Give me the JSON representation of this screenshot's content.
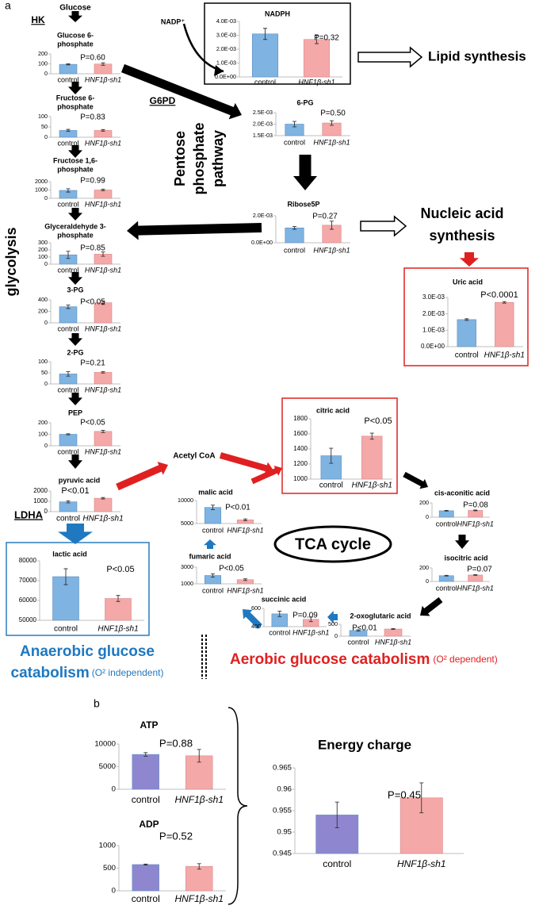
{
  "labels": {
    "panel_a": "a",
    "panel_b": "b",
    "glucose": "Glucose",
    "hk": "HK",
    "nadp": "NADP⁺",
    "g6pd": "G6PD",
    "pentose": [
      "Pentose",
      "phosphate",
      "pathway"
    ],
    "glycolysis": "glycolysis",
    "lipid": "Lipid synthesis",
    "nucleic": [
      "Nucleic acid",
      "synthesis"
    ],
    "acetyl": "Acetyl CoA",
    "ldha": "LDHA",
    "tca": "TCA cycle",
    "anaerobic": {
      "main": [
        "Anaerobic glucose",
        "catabolism"
      ],
      "note": "(O² independent)"
    },
    "aerobic": {
      "main": "Aerobic glucose catabolism",
      "note": "(O² dependent)"
    }
  },
  "chart_data": [
    {
      "type": "bar",
      "title": [
        "Glucose 6-",
        "phosphate"
      ],
      "categories": [
        "control",
        "HNF1β-sh1"
      ],
      "values": [
        95,
        98
      ],
      "errors": [
        5,
        12
      ],
      "colors": [
        "#7eb3e2",
        "#f5a8a8"
      ],
      "ylim": [
        0,
        200
      ],
      "yticks": [
        0,
        100,
        200
      ],
      "annotation": "P=0.60"
    },
    {
      "type": "bar",
      "title": [
        "Fructose 6-",
        "phosphate"
      ],
      "categories": [
        "control",
        "HNF1β-sh1"
      ],
      "values": [
        33,
        33
      ],
      "errors": [
        5,
        4
      ],
      "colors": [
        "#7eb3e2",
        "#f5a8a8"
      ],
      "ylim": [
        0,
        100
      ],
      "yticks": [
        0,
        50,
        100
      ],
      "annotation": "P=0.83"
    },
    {
      "type": "bar",
      "title": [
        "Fructose 1,6-",
        "phosphate"
      ],
      "categories": [
        "control",
        "HNF1β-sh1"
      ],
      "values": [
        950,
        1000
      ],
      "errors": [
        200,
        100
      ],
      "colors": [
        "#7eb3e2",
        "#f5a8a8"
      ],
      "ylim": [
        0,
        2000
      ],
      "yticks": [
        0,
        1000,
        2000
      ],
      "annotation": "P=0.99"
    },
    {
      "type": "bar",
      "title": [
        "Glyceraldehyde 3-",
        "phosphate"
      ],
      "categories": [
        "control",
        "HNF1β-sh1"
      ],
      "values": [
        130,
        140
      ],
      "errors": [
        50,
        30
      ],
      "colors": [
        "#7eb3e2",
        "#f5a8a8"
      ],
      "ylim": [
        0,
        300
      ],
      "yticks": [
        0,
        100,
        200,
        300
      ],
      "annotation": "P=0.85"
    },
    {
      "type": "bar",
      "title": "3-PG",
      "categories": [
        "control",
        "HNF1β-sh1"
      ],
      "values": [
        280,
        350
      ],
      "errors": [
        30,
        30
      ],
      "colors": [
        "#7eb3e2",
        "#f5a8a8"
      ],
      "ylim": [
        0,
        400
      ],
      "yticks": [
        0,
        200,
        400
      ],
      "annotation": "P<0.05"
    },
    {
      "type": "bar",
      "title": "2-PG",
      "categories": [
        "control",
        "HNF1β-sh1"
      ],
      "values": [
        45,
        52
      ],
      "errors": [
        10,
        3
      ],
      "colors": [
        "#7eb3e2",
        "#f5a8a8"
      ],
      "ylim": [
        0,
        100
      ],
      "yticks": [
        0,
        50,
        100
      ],
      "annotation": "P=0.21"
    },
    {
      "type": "bar",
      "title": "PEP",
      "categories": [
        "control",
        "HNF1β-sh1"
      ],
      "values": [
        100,
        125
      ],
      "errors": [
        5,
        10
      ],
      "colors": [
        "#7eb3e2",
        "#f5a8a8"
      ],
      "ylim": [
        0,
        200
      ],
      "yticks": [
        0,
        100,
        200
      ],
      "annotation": "P<0.05"
    },
    {
      "type": "bar",
      "title": "pyruvic acid",
      "categories": [
        "control",
        "HNF1β-sh1"
      ],
      "values": [
        950,
        1300
      ],
      "errors": [
        100,
        70
      ],
      "colors": [
        "#7eb3e2",
        "#f5a8a8"
      ],
      "ylim": [
        0,
        2000
      ],
      "yticks": [
        0,
        1000,
        2000
      ],
      "annotation": "P<0.01"
    },
    {
      "type": "bar",
      "title": "NADPH",
      "categories": [
        "control",
        "HNF1β-sh1"
      ],
      "values": [
        0.0031,
        0.0027
      ],
      "errors": [
        0.0004,
        0.0003
      ],
      "colors": [
        "#7eb3e2",
        "#f5a8a8"
      ],
      "ylim": [
        0,
        0.004
      ],
      "yticks": [
        {
          "value": 0,
          "label": "0.0E+00"
        },
        {
          "value": 0.001,
          "label": "1.0E-03"
        },
        {
          "value": 0.002,
          "label": "2.0E-03"
        },
        {
          "value": 0.003,
          "label": "3.0E-03"
        },
        {
          "value": 0.004,
          "label": "4.0E-03"
        }
      ],
      "annotation": "P=0.32"
    },
    {
      "type": "bar",
      "title": "6-PG",
      "categories": [
        "control",
        "HNF1β-sh1"
      ],
      "values": [
        0.002,
        0.00205
      ],
      "errors": [
        0.00012,
        0.0001
      ],
      "colors": [
        "#7eb3e2",
        "#f5a8a8"
      ],
      "ylim": [
        0.0015,
        0.0025
      ],
      "yticks": [
        {
          "value": 0.0015,
          "label": "1.5E-03"
        },
        {
          "value": 0.002,
          "label": "2.0E-03"
        },
        {
          "value": 0.0025,
          "label": "2.5E-03"
        }
      ],
      "annotation": "P=0.50"
    },
    {
      "type": "bar",
      "title": "Ribose5P",
      "categories": [
        "control",
        "HNF1β-sh1"
      ],
      "values": [
        0.0011,
        0.0013
      ],
      "errors": [
        0.0001,
        0.0003
      ],
      "colors": [
        "#7eb3e2",
        "#f5a8a8"
      ],
      "ylim": [
        0,
        0.002
      ],
      "yticks": [
        {
          "value": 0,
          "label": "0.0E+00"
        },
        {
          "value": 0.002,
          "label": "2.0E-03"
        }
      ],
      "annotation": "P=0.27"
    },
    {
      "type": "bar",
      "title": "Uric acid",
      "categories": [
        "control",
        "HNF1β-sh1"
      ],
      "values": [
        0.00165,
        0.0027
      ],
      "errors": [
        5e-05,
        5e-05
      ],
      "colors": [
        "#7eb3e2",
        "#f5a8a8"
      ],
      "ylim": [
        0,
        0.003
      ],
      "yticks": [
        {
          "value": 0,
          "label": "0.0E+00"
        },
        {
          "value": 0.001,
          "label": "1.0E-03"
        },
        {
          "value": 0.002,
          "label": "2.0E-03"
        },
        {
          "value": 0.003,
          "label": "3.0E-03"
        }
      ],
      "annotation": "P<0.0001"
    },
    {
      "type": "bar",
      "title": "citric acid",
      "categories": [
        "control",
        "HNF1β-sh1"
      ],
      "values": [
        1310,
        1570
      ],
      "errors": [
        100,
        40
      ],
      "colors": [
        "#7eb3e2",
        "#f5a8a8"
      ],
      "ylim": [
        1000,
        1800
      ],
      "yticks": [
        1000,
        1200,
        1400,
        1600,
        1800
      ],
      "annotation": "P<0.05"
    },
    {
      "type": "bar",
      "title": "cis-aconitic acid",
      "categories": [
        "control",
        "HNF1β-sh1"
      ],
      "values": [
        90,
        95
      ],
      "errors": [
        5,
        5
      ],
      "colors": [
        "#7eb3e2",
        "#f5a8a8"
      ],
      "ylim": [
        0,
        200
      ],
      "yticks": [
        0,
        200
      ],
      "annotation": "P=0.08"
    },
    {
      "type": "bar",
      "title": "isocitric acid",
      "categories": [
        "control",
        "HNF1β-sh1"
      ],
      "values": [
        85,
        95
      ],
      "errors": [
        5,
        5
      ],
      "colors": [
        "#7eb3e2",
        "#f5a8a8"
      ],
      "ylim": [
        0,
        200
      ],
      "yticks": [
        0,
        200
      ],
      "annotation": "P=0.07"
    },
    {
      "type": "bar",
      "title": "2-oxoglutaric acid",
      "categories": [
        "control",
        "HNF1β-sh1"
      ],
      "values": [
        240,
        300
      ],
      "errors": [
        30,
        20
      ],
      "colors": [
        "#7eb3e2",
        "#f5a8a8"
      ],
      "ylim": [
        0,
        500
      ],
      "yticks": [
        0,
        500
      ],
      "annotation": "P<0.01"
    },
    {
      "type": "bar",
      "title": "succinic acid",
      "categories": [
        "control",
        "HNF1β-sh1"
      ],
      "values": [
        540,
        480
      ],
      "errors": [
        30,
        25
      ],
      "colors": [
        "#7eb3e2",
        "#f5a8a8"
      ],
      "ylim": [
        400,
        600
      ],
      "yticks": [
        400,
        600
      ],
      "annotation": "P=0.09"
    },
    {
      "type": "bar",
      "title": "fumaric acid",
      "categories": [
        "control",
        "HNF1β-sh1"
      ],
      "values": [
        2000,
        1500
      ],
      "errors": [
        200,
        100
      ],
      "colors": [
        "#7eb3e2",
        "#f5a8a8"
      ],
      "ylim": [
        1000,
        3000
      ],
      "yticks": [
        1000,
        3000
      ],
      "annotation": "P<0.05"
    },
    {
      "type": "bar",
      "title": "malic acid",
      "categories": [
        "control",
        "HNF1β-sh1"
      ],
      "values": [
        8500,
        5800
      ],
      "errors": [
        500,
        200
      ],
      "colors": [
        "#7eb3e2",
        "#f5a8a8"
      ],
      "ylim": [
        5000,
        10000
      ],
      "yticks": [
        5000,
        10000
      ],
      "annotation": "P<0.01"
    },
    {
      "type": "bar",
      "title": "lactic acid",
      "categories": [
        "control",
        "HNF1β-sh1"
      ],
      "values": [
        72000,
        61000
      ],
      "errors": [
        4000,
        1500
      ],
      "colors": [
        "#7eb3e2",
        "#f5a8a8"
      ],
      "ylim": [
        50000,
        80000
      ],
      "yticks": [
        50000,
        60000,
        70000,
        80000
      ],
      "annotation": "P<0.05"
    },
    {
      "type": "bar",
      "title": "ATP",
      "categories": [
        "control",
        "HNF1β-sh1"
      ],
      "values": [
        7700,
        7400
      ],
      "errors": [
        400,
        1400
      ],
      "colors": [
        "#8f86d0",
        "#f5a8a8"
      ],
      "ylim": [
        0,
        10000
      ],
      "yticks": [
        0,
        5000,
        10000
      ],
      "annotation": "P=0.88"
    },
    {
      "type": "bar",
      "title": "ADP",
      "categories": [
        "control",
        "HNF1β-sh1"
      ],
      "values": [
        580,
        540
      ],
      "errors": [
        10,
        60
      ],
      "colors": [
        "#8f86d0",
        "#f5a8a8"
      ],
      "ylim": [
        0,
        1000
      ],
      "yticks": [
        0,
        500,
        1000
      ],
      "annotation": "P=0.52"
    },
    {
      "type": "bar",
      "title": "Energy charge",
      "categories": [
        "control",
        "HNF1β-sh1"
      ],
      "values": [
        0.954,
        0.958
      ],
      "errors": [
        0.003,
        0.0035
      ],
      "colors": [
        "#8f86d0",
        "#f5a8a8"
      ],
      "ylim": [
        0.945,
        0.965
      ],
      "yticks": [
        0.945,
        0.95,
        0.955,
        0.96,
        0.965
      ],
      "annotation": "P=0.45"
    }
  ]
}
